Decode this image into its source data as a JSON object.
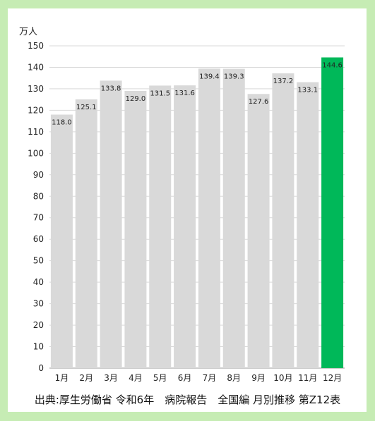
{
  "chart_data": {
    "type": "bar",
    "unit_label": "万人",
    "categories": [
      "1月",
      "2月",
      "3月",
      "4月",
      "5月",
      "6月",
      "7月",
      "8月",
      "9月",
      "10月",
      "11月",
      "12月"
    ],
    "values": [
      118.0,
      125.1,
      133.8,
      129.0,
      131.5,
      131.6,
      139.4,
      139.3,
      127.6,
      137.2,
      133.1,
      144.6
    ],
    "value_labels": [
      "118.0",
      "125.1",
      "133.8",
      "129.0",
      "131.5",
      "131.6",
      "139.4",
      "139.3",
      "127.6",
      "137.2",
      "133.1",
      "144.6"
    ],
    "ylim": [
      0,
      150
    ],
    "yticks": [
      0,
      10,
      20,
      30,
      40,
      50,
      60,
      70,
      80,
      90,
      100,
      110,
      120,
      130,
      140,
      150
    ],
    "grid": true,
    "highlight_index": 11,
    "bar_color": "#d9d9d9",
    "highlight_color": "#00b859"
  },
  "source_note": "出典:厚生労働省 令和6年　病院報告　全国編 月別推移 第Z12表"
}
